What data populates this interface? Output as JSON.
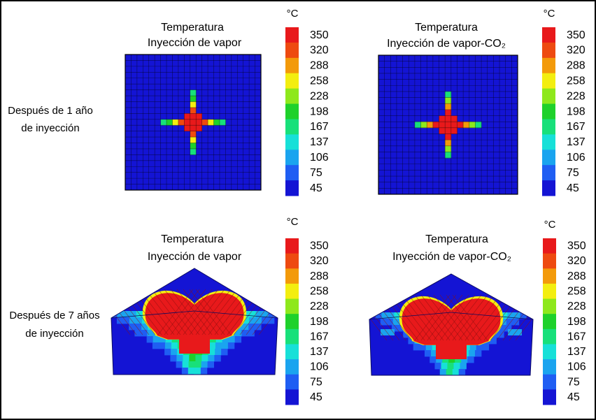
{
  "rows": [
    {
      "label_line1": "Después de 1 año",
      "label_line2": "de inyección"
    },
    {
      "label_line1": "Después de 7 años",
      "label_line2": "de inyección"
    }
  ],
  "unit": "°C",
  "colorbar_ticks": [
    350,
    320,
    288,
    258,
    228,
    198,
    167,
    137,
    106,
    75,
    45
  ],
  "colorbar_colors": [
    "#e8191b",
    "#ee4a10",
    "#f39a0a",
    "#f3ee10",
    "#8ee81c",
    "#1ed12b",
    "#18e07a",
    "#17e0d8",
    "#1aa4ef",
    "#1f5ef3",
    "#1414d4"
  ],
  "chart_data": [
    {
      "type": "heatmap",
      "title": "Temperatura",
      "subtitle": "Inyección de vapor",
      "view": "areal",
      "period": "Después de 1 año de inyección",
      "color_scale": [
        45,
        350
      ],
      "pattern": "cross-shaped hot zone centred on the well; arms extend ~5 cells each way",
      "background_value": 45
    },
    {
      "type": "heatmap",
      "title": "Temperatura",
      "subtitle": "Inyección de vapor-CO₂",
      "view": "areal",
      "period": "Después de 1 año de inyección",
      "color_scale": [
        45,
        350
      ],
      "pattern": "cross-shaped hot zone, slightly larger central core than steam case",
      "background_value": 45
    },
    {
      "type": "heatmap",
      "title": "Temperatura",
      "subtitle": "Inyección de vapor",
      "view": "3D cross-section",
      "period": "Después de 7 años de inyección",
      "color_scale": [
        45,
        350
      ],
      "pattern": "steam chamber ~350 in upper cone; cooling plume 45-228 below",
      "background_value": 45
    },
    {
      "type": "heatmap",
      "title": "Temperatura",
      "subtitle": "Inyección de vapor-CO₂",
      "view": "3D cross-section",
      "period": "Después de 7 años de inyección",
      "color_scale": [
        45,
        350
      ],
      "pattern": "steam chamber ~350 in upper cone; narrower cooling plume below",
      "background_value": 45
    }
  ]
}
